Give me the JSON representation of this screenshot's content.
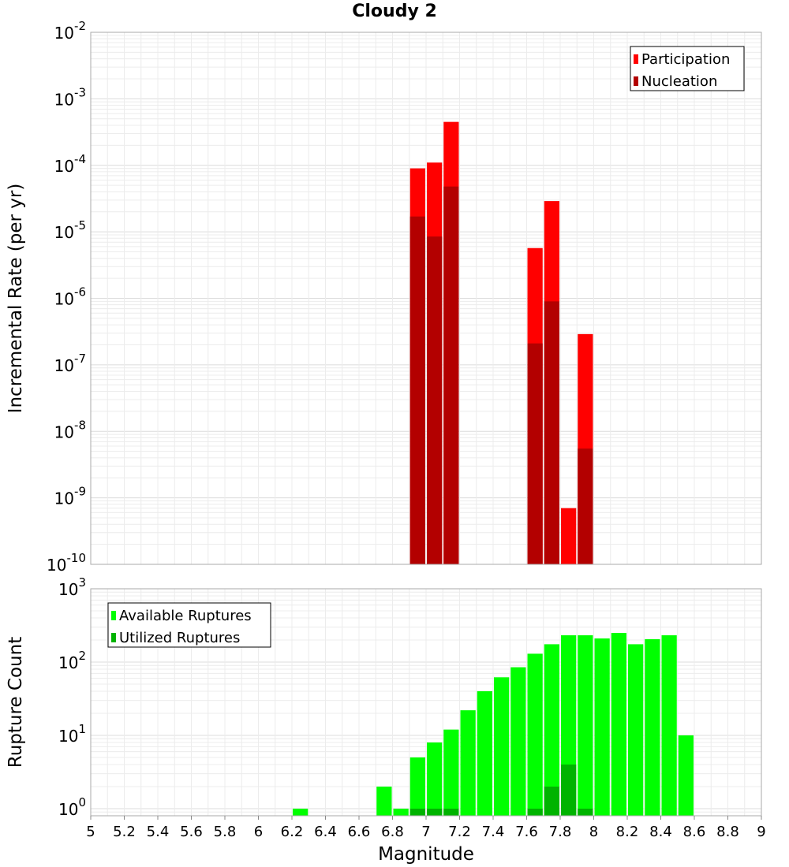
{
  "chart_data": [
    {
      "type": "bar",
      "title": "Cloudy 2",
      "ylabel": "Incremental Rate (per yr)",
      "yscale": "log",
      "ylim": [
        1e-10,
        0.01
      ],
      "xlim": [
        5,
        9
      ],
      "grid": true,
      "legend_position": "top-right",
      "bar_width": 0.1,
      "y_ticks": [
        {
          "base": "10",
          "exp": "-2",
          "value": 0.01
        },
        {
          "base": "10",
          "exp": "-3",
          "value": 0.001
        },
        {
          "base": "10",
          "exp": "-4",
          "value": 0.0001
        },
        {
          "base": "10",
          "exp": "-5",
          "value": 1e-05
        },
        {
          "base": "10",
          "exp": "-6",
          "value": 1e-06
        },
        {
          "base": "10",
          "exp": "-7",
          "value": 1e-07
        },
        {
          "base": "10",
          "exp": "-8",
          "value": 1e-08
        },
        {
          "base": "10",
          "exp": "-9",
          "value": 1e-09
        },
        {
          "base": "10",
          "exp": "-10",
          "value": 1e-10
        }
      ],
      "series": [
        {
          "name": "Participation",
          "color": "#ff0000",
          "x": [
            6.95,
            7.05,
            7.15,
            7.65,
            7.75,
            7.85,
            7.95
          ],
          "values": [
            9e-05,
            0.00011,
            0.00045,
            5.7e-06,
            2.9e-05,
            7e-10,
            2.9e-07
          ]
        },
        {
          "name": "Nucleation",
          "color": "#b30000",
          "x": [
            6.95,
            7.05,
            7.15,
            7.65,
            7.75,
            7.95
          ],
          "values": [
            1.7e-05,
            8.5e-06,
            4.8e-05,
            2.1e-07,
            9e-07,
            5.5e-09
          ]
        }
      ]
    },
    {
      "type": "bar",
      "ylabel": "Rupture Count",
      "xlabel": "Magnitude",
      "yscale": "log",
      "ylim": [
        0.8,
        1000
      ],
      "xlim": [
        5,
        9
      ],
      "grid": true,
      "legend_position": "top-left",
      "bar_width": 0.1,
      "x_ticks": [
        "5",
        "5.2",
        "5.4",
        "5.6",
        "5.8",
        "6",
        "6.2",
        "6.4",
        "6.6",
        "6.8",
        "7",
        "7.2",
        "7.4",
        "7.6",
        "7.8",
        "8",
        "8.2",
        "8.4",
        "8.6",
        "8.8",
        "9"
      ],
      "y_ticks": [
        {
          "base": "10",
          "exp": "3",
          "value": 1000
        },
        {
          "base": "10",
          "exp": "2",
          "value": 100
        },
        {
          "base": "10",
          "exp": "1",
          "value": 10
        },
        {
          "base": "10",
          "exp": "0",
          "value": 1
        }
      ],
      "series": [
        {
          "name": "Available Ruptures",
          "color": "#00ff00",
          "x": [
            6.25,
            6.75,
            6.85,
            6.95,
            7.05,
            7.15,
            7.25,
            7.35,
            7.45,
            7.55,
            7.65,
            7.75,
            7.85,
            7.95,
            8.05,
            8.15,
            8.25,
            8.35,
            8.45,
            8.55
          ],
          "values": [
            1,
            2,
            1,
            5,
            8,
            12,
            22,
            40,
            62,
            85,
            130,
            175,
            232,
            232,
            210,
            250,
            175,
            205,
            232,
            10
          ]
        },
        {
          "name": "Utilized Ruptures",
          "color": "#00b300",
          "x": [
            6.95,
            7.05,
            7.15,
            7.65,
            7.75,
            7.85,
            7.95
          ],
          "values": [
            1,
            1,
            1,
            1,
            2,
            4,
            1
          ]
        }
      ]
    }
  ]
}
